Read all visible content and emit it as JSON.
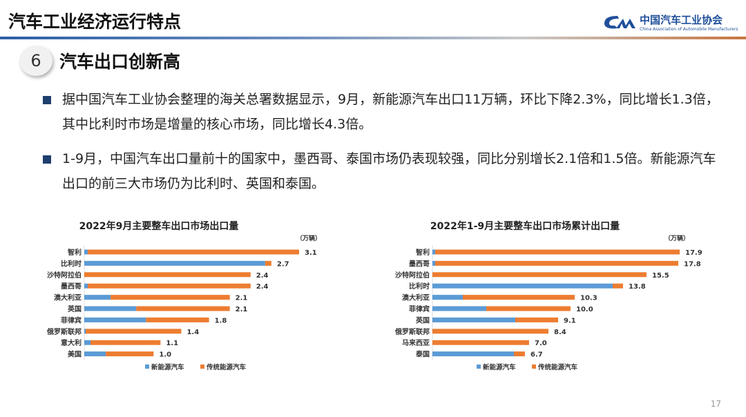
{
  "header": {
    "title": "汽车工业经济运行特点",
    "logo_cn": "中国汽车工业协会",
    "logo_en": "China Association of Automobile Manufacturers"
  },
  "section": {
    "number": "6",
    "title": "汽车出口创新高"
  },
  "bullets": [
    "据中国汽车工业协会整理的海关总署数据显示，9月，新能源汽车出口11万辆，环比下降2.3%，同比增长1.3倍，其中比利时市场是增量的核心市场，同比增长4.3倍。",
    "1-9月，中国汽车出口量前十的国家中，墨西哥、泰国市场仍表现较强，同比分别增长2.1倍和1.5倍。新能源汽车出口的前三大市场仍为比利时、英国和泰国。"
  ],
  "page_number": "17",
  "colors": {
    "nev": "#5b9bd5",
    "traditional": "#ed7d31",
    "brand": "#1f4f9a"
  },
  "chart_data": [
    {
      "type": "bar",
      "orientation": "horizontal",
      "stacked": true,
      "title": "2022年9月主要整车出口市场出口量",
      "unit": "（万辆）",
      "categories": [
        "智利",
        "比利时",
        "沙特阿拉伯",
        "墨西哥",
        "澳大利亚",
        "英国",
        "菲律宾",
        "俄罗斯联邦",
        "意大利",
        "美国"
      ],
      "totals": [
        3.1,
        2.7,
        2.4,
        2.4,
        2.1,
        2.1,
        1.8,
        1.4,
        1.1,
        1.0
      ],
      "total_labels": [
        "3.1",
        "2.7",
        "2.4",
        "2.4",
        "2.1",
        "2.1",
        "1.8",
        "1.4",
        "1.1",
        "1.0"
      ],
      "series": [
        {
          "name": "新能源汽车",
          "values": [
            0.05,
            2.61,
            0,
            0.05,
            0.38,
            0.75,
            0.89,
            0.02,
            0.09,
            0.31
          ]
        },
        {
          "name": "传统能源汽车",
          "values": [
            3.05,
            0.09,
            2.4,
            2.35,
            1.72,
            1.35,
            0.91,
            1.38,
            1.01,
            0.69
          ]
        }
      ],
      "xlim": [
        0,
        3.1
      ],
      "grid": false,
      "legend": "bottom"
    },
    {
      "type": "bar",
      "orientation": "horizontal",
      "stacked": true,
      "title": "2022年1-9月主要整车出口市场累计出口量",
      "unit": "（万辆）",
      "categories": [
        "智利",
        "墨西哥",
        "沙特阿拉伯",
        "比利时",
        "澳大利亚",
        "菲律宾",
        "英国",
        "俄罗斯联邦",
        "马来西亚",
        "泰国"
      ],
      "totals": [
        17.9,
        17.8,
        15.5,
        13.8,
        10.3,
        10.0,
        9.1,
        8.4,
        7.0,
        6.7
      ],
      "total_labels": [
        "17.9",
        "17.8",
        "15.5",
        "13.8",
        "10.3",
        "10.0",
        "9.1",
        "8.4",
        "7.0",
        "6.7"
      ],
      "series": [
        {
          "name": "新能源汽车",
          "values": [
            0.2,
            0.2,
            0,
            13.05,
            2.2,
            3.9,
            6.0,
            0,
            0,
            5.9
          ]
        },
        {
          "name": "传统能源汽车",
          "values": [
            17.7,
            17.6,
            15.5,
            0.75,
            8.1,
            6.1,
            3.1,
            8.4,
            7.0,
            0.8
          ]
        }
      ],
      "xlim": [
        0,
        17.9
      ],
      "grid": false,
      "legend": "bottom"
    }
  ]
}
